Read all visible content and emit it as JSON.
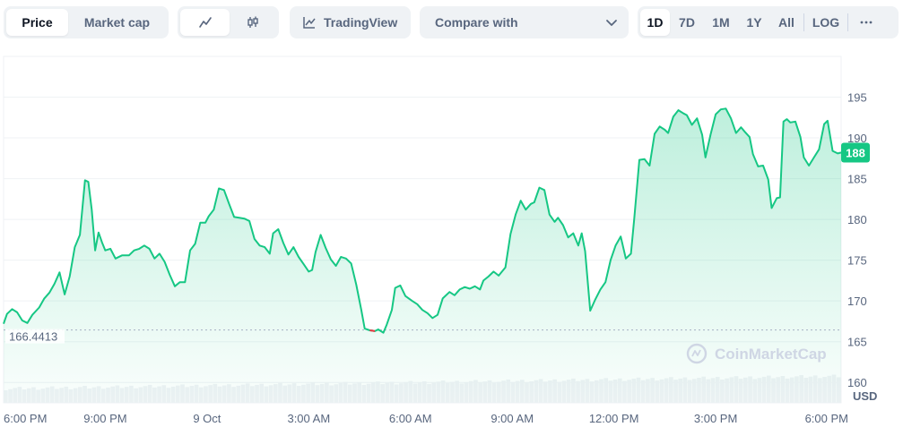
{
  "toolbar": {
    "metric_tabs": [
      {
        "label": "Price",
        "active": true
      },
      {
        "label": "Market cap",
        "active": false
      }
    ],
    "chart_style": {
      "line_icon": "line-chart-icon",
      "candle_icon": "candlestick-icon",
      "active": "line"
    },
    "tradingview": {
      "label": "TradingView",
      "icon": "tradingview-icon"
    },
    "compare": {
      "label": "Compare with",
      "icon": "chevron-down-icon"
    },
    "ranges": [
      {
        "label": "1D",
        "active": true
      },
      {
        "label": "7D",
        "active": false
      },
      {
        "label": "1M",
        "active": false
      },
      {
        "label": "1Y",
        "active": false
      },
      {
        "label": "All",
        "active": false
      },
      {
        "label": "LOG",
        "active": false
      }
    ],
    "more_icon": "more-dots-icon"
  },
  "colors": {
    "up": "#16c784",
    "down": "#ea3943",
    "grid": "#eff2f5",
    "text": "#58667e",
    "volume": "#eff2f5"
  },
  "chart_data": {
    "type": "line",
    "currency_label": "USD",
    "watermark": "CoinMarketCap",
    "open_price_label": "166.4413",
    "current_price_label": "188",
    "y_ticks": [
      160,
      165,
      170,
      175,
      180,
      185,
      190,
      195
    ],
    "ylim": [
      157.5,
      200
    ],
    "x_ticks": [
      "6:00 PM",
      "9:00 PM",
      "9 Oct",
      "3:00 AM",
      "6:00 AM",
      "9:00 AM",
      "12:00 PM",
      "3:00 PM",
      "6:00 PM"
    ],
    "xlim": [
      0,
      24.7
    ],
    "x_tick_positions_hours": [
      0,
      3,
      6,
      9,
      12,
      15,
      18,
      21,
      24
    ],
    "reference_value": 166.4413,
    "series": [
      {
        "points": [
          [
            0.0,
            167.2
          ],
          [
            0.1,
            168.4
          ],
          [
            0.25,
            169.0
          ],
          [
            0.4,
            168.6
          ],
          [
            0.55,
            167.6
          ],
          [
            0.7,
            167.3
          ],
          [
            0.85,
            168.3
          ],
          [
            1.05,
            169.2
          ],
          [
            1.2,
            170.3
          ],
          [
            1.35,
            171.0
          ],
          [
            1.5,
            172.1
          ],
          [
            1.65,
            173.5
          ],
          [
            1.8,
            170.8
          ],
          [
            1.95,
            173.0
          ],
          [
            2.1,
            176.6
          ],
          [
            2.25,
            178.1
          ],
          [
            2.4,
            184.8
          ],
          [
            2.5,
            184.6
          ],
          [
            2.6,
            181.2
          ],
          [
            2.7,
            176.2
          ],
          [
            2.8,
            178.4
          ],
          [
            2.9,
            177.2
          ],
          [
            3.0,
            176.2
          ],
          [
            3.15,
            176.4
          ],
          [
            3.3,
            175.2
          ],
          [
            3.5,
            175.6
          ],
          [
            3.7,
            175.6
          ],
          [
            3.85,
            176.2
          ],
          [
            4.0,
            176.4
          ],
          [
            4.15,
            176.8
          ],
          [
            4.3,
            176.4
          ],
          [
            4.45,
            175.2
          ],
          [
            4.6,
            175.8
          ],
          [
            4.75,
            174.8
          ],
          [
            4.9,
            173.2
          ],
          [
            5.05,
            171.8
          ],
          [
            5.2,
            172.3
          ],
          [
            5.35,
            172.3
          ],
          [
            5.5,
            176.2
          ],
          [
            5.65,
            177.0
          ],
          [
            5.8,
            179.6
          ],
          [
            5.95,
            179.6
          ],
          [
            6.05,
            180.4
          ],
          [
            6.2,
            181.2
          ],
          [
            6.35,
            183.8
          ],
          [
            6.5,
            183.6
          ],
          [
            6.65,
            181.9
          ],
          [
            6.8,
            180.3
          ],
          [
            6.95,
            180.2
          ],
          [
            7.1,
            180.1
          ],
          [
            7.25,
            179.8
          ],
          [
            7.4,
            177.6
          ],
          [
            7.55,
            176.8
          ],
          [
            7.7,
            176.6
          ],
          [
            7.85,
            175.8
          ],
          [
            7.95,
            178.3
          ],
          [
            8.1,
            178.8
          ],
          [
            8.25,
            177.1
          ],
          [
            8.4,
            175.7
          ],
          [
            8.55,
            176.6
          ],
          [
            8.7,
            175.4
          ],
          [
            8.85,
            174.5
          ],
          [
            9.0,
            173.6
          ],
          [
            9.1,
            173.8
          ],
          [
            9.2,
            176.0
          ],
          [
            9.35,
            178.1
          ],
          [
            9.5,
            176.5
          ],
          [
            9.65,
            175.1
          ],
          [
            9.8,
            174.3
          ],
          [
            9.95,
            175.4
          ],
          [
            10.1,
            175.2
          ],
          [
            10.25,
            174.6
          ],
          [
            10.4,
            172.0
          ],
          [
            10.55,
            168.9
          ],
          [
            10.65,
            166.6
          ],
          [
            10.8,
            166.4
          ],
          [
            10.95,
            166.3
          ],
          [
            11.05,
            166.5
          ],
          [
            11.2,
            166.1
          ],
          [
            11.3,
            167.1
          ],
          [
            11.45,
            168.9
          ],
          [
            11.55,
            171.6
          ],
          [
            11.7,
            171.9
          ],
          [
            11.85,
            170.6
          ],
          [
            12.05,
            170.0
          ],
          [
            12.2,
            169.6
          ],
          [
            12.35,
            168.9
          ],
          [
            12.5,
            168.5
          ],
          [
            12.65,
            167.9
          ],
          [
            12.8,
            168.3
          ],
          [
            12.95,
            170.3
          ],
          [
            13.15,
            171.1
          ],
          [
            13.3,
            170.7
          ],
          [
            13.45,
            171.4
          ],
          [
            13.6,
            171.7
          ],
          [
            13.75,
            171.5
          ],
          [
            13.9,
            171.8
          ],
          [
            14.05,
            171.4
          ],
          [
            14.15,
            172.5
          ],
          [
            14.3,
            173.0
          ],
          [
            14.45,
            173.6
          ],
          [
            14.6,
            173.1
          ],
          [
            14.8,
            174.1
          ],
          [
            14.95,
            178.2
          ],
          [
            15.1,
            180.6
          ],
          [
            15.25,
            182.3
          ],
          [
            15.4,
            181.2
          ],
          [
            15.55,
            181.9
          ],
          [
            15.65,
            182.1
          ],
          [
            15.8,
            183.9
          ],
          [
            15.95,
            183.6
          ],
          [
            16.1,
            180.6
          ],
          [
            16.25,
            179.7
          ],
          [
            16.35,
            180.2
          ],
          [
            16.5,
            179.3
          ],
          [
            16.65,
            177.8
          ],
          [
            16.8,
            178.3
          ],
          [
            16.95,
            176.8
          ],
          [
            17.05,
            178.3
          ],
          [
            17.15,
            176.1
          ],
          [
            17.3,
            168.8
          ],
          [
            17.45,
            170.2
          ],
          [
            17.6,
            171.4
          ],
          [
            17.75,
            172.3
          ],
          [
            17.9,
            175.0
          ],
          [
            18.05,
            176.8
          ],
          [
            18.2,
            177.9
          ],
          [
            18.35,
            175.2
          ],
          [
            18.5,
            175.8
          ],
          [
            18.6,
            180.1
          ],
          [
            18.75,
            187.3
          ],
          [
            18.9,
            187.4
          ],
          [
            19.05,
            186.6
          ],
          [
            19.2,
            190.5
          ],
          [
            19.35,
            191.4
          ],
          [
            19.5,
            191.0
          ],
          [
            19.6,
            190.6
          ],
          [
            19.75,
            192.6
          ],
          [
            19.9,
            193.4
          ],
          [
            20.05,
            193.0
          ],
          [
            20.15,
            192.8
          ],
          [
            20.3,
            191.6
          ],
          [
            20.45,
            192.4
          ],
          [
            20.6,
            190.4
          ],
          [
            20.7,
            187.6
          ],
          [
            20.85,
            190.4
          ],
          [
            21.0,
            192.9
          ],
          [
            21.15,
            193.5
          ],
          [
            21.3,
            193.6
          ],
          [
            21.45,
            192.4
          ],
          [
            21.6,
            190.6
          ],
          [
            21.75,
            191.3
          ],
          [
            21.85,
            190.8
          ],
          [
            22.0,
            190.1
          ],
          [
            22.1,
            188.0
          ],
          [
            22.25,
            186.5
          ],
          [
            22.4,
            186.6
          ],
          [
            22.55,
            184.9
          ],
          [
            22.65,
            181.4
          ],
          [
            22.8,
            182.6
          ],
          [
            22.9,
            182.7
          ],
          [
            23.0,
            192.0
          ],
          [
            23.1,
            192.3
          ],
          [
            23.2,
            191.9
          ],
          [
            23.35,
            192.0
          ],
          [
            23.5,
            190.1
          ],
          [
            23.6,
            187.6
          ],
          [
            23.75,
            186.6
          ],
          [
            23.9,
            187.6
          ],
          [
            24.05,
            188.6
          ],
          [
            24.2,
            191.7
          ],
          [
            24.3,
            192.1
          ],
          [
            24.45,
            188.4
          ],
          [
            24.6,
            188.1
          ],
          [
            24.7,
            188.2
          ]
        ]
      }
    ],
    "grid": true
  }
}
